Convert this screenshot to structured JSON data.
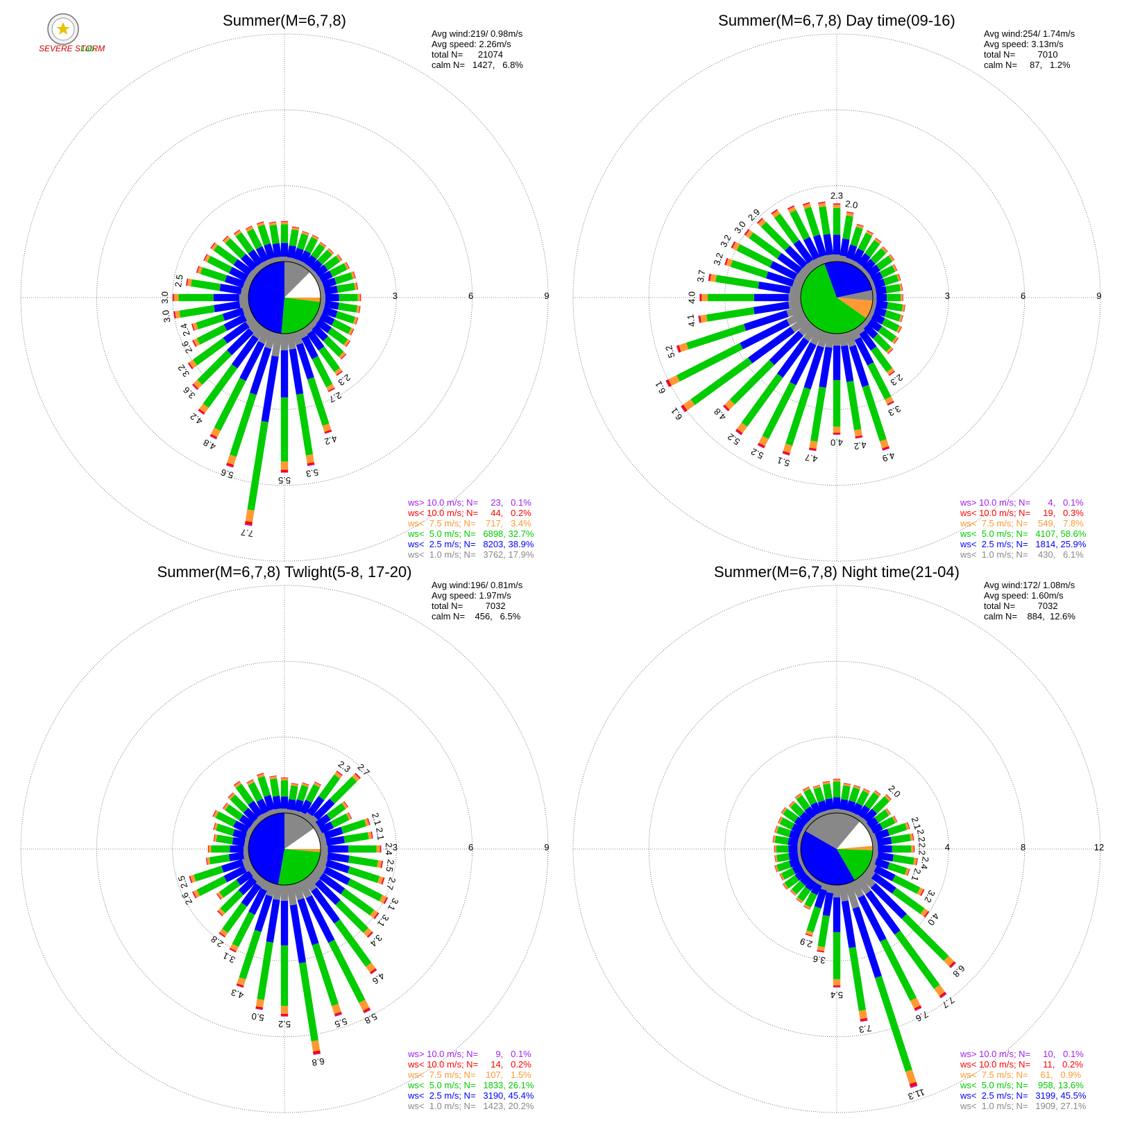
{
  "logo": {
    "text_main": "SEVERE STORM",
    "text_lab": "Lab."
  },
  "legend_colors": [
    "#a020f0",
    "#ff0000",
    "#ff9933",
    "#00cc00",
    "#0000ff",
    "#888888"
  ],
  "chart_data": [
    {
      "type": "windrose",
      "title": "Summer(M=6,7,8)",
      "avg_wind": "Avg wind:219/ 0.98m/s",
      "avg_speed": "Avg speed: 2.26m/s",
      "total": "total N=      21074",
      "calm": "calm N=   1427,   6.8%",
      "rings": [
        3,
        6,
        9
      ],
      "ring_labels": [
        "3",
        "6",
        "9"
      ],
      "legend": [
        "ws> 10.0 m/s; N=     23,   0.1%",
        "ws< 10.0 m/s; N=     44,   0.2%",
        "ws<  7.5 m/s; N=    717,   3.4%",
        "ws<  5.0 m/s; N=   6898, 32.7%",
        "ws<  2.5 m/s; N=   8203, 38.9%",
        "ws<  1.0 m/s; N=   3762, 17.9%"
      ],
      "pie": [
        {
          "start": 0,
          "end": 45,
          "color": "#888888"
        },
        {
          "start": 45,
          "end": 90,
          "color": "#ffffff"
        },
        {
          "start": 90,
          "end": 97,
          "color": "#ff9933"
        },
        {
          "start": 97,
          "end": 185,
          "color": "#00cc00"
        },
        {
          "start": 185,
          "end": 360,
          "color": "#0000ff"
        }
      ],
      "values": [
        1.6,
        1.4,
        1.3,
        1.3,
        1.2,
        1.2,
        1.3,
        1.4,
        1.5,
        1.5,
        1.6,
        1.6,
        1.6,
        1.6,
        1.7,
        1.9,
        2.3,
        2.7,
        4.2,
        5.3,
        5.5,
        7.7,
        5.6,
        4.8,
        4.2,
        3.6,
        3.2,
        2.6,
        2.4,
        3.0,
        3.0,
        2.5,
        2.2,
        2.1,
        2.1,
        1.9,
        1.8,
        1.7,
        1.7,
        1.6
      ],
      "labels": {
        "16": "2.3",
        "17": "2.7",
        "18": "4.2",
        "19": "5.3",
        "20": "5.5",
        "21": "7.7",
        "22": "5.6",
        "23": "4.8",
        "24": "4.2",
        "25": "3.6",
        "26": "3.2",
        "27": "2.6",
        "28": "2.4",
        "29": "3.0",
        "30": "3.0",
        "31": "2.5"
      }
    },
    {
      "type": "windrose",
      "title": "Summer(M=6,7,8) Day time(09-16)",
      "avg_wind": "Avg wind:254/ 1.74m/s",
      "avg_speed": "Avg speed: 3.13m/s",
      "total": "total N=         7010",
      "calm": "calm N=     87,   1.2%",
      "rings": [
        3,
        6,
        9
      ],
      "ring_labels": [
        "3",
        "6",
        "9"
      ],
      "legend": [
        "ws> 10.0 m/s; N=       4,   0.1%",
        "ws< 10.0 m/s; N=     19,   0.3%",
        "ws<  7.5 m/s; N=    549,   7.8%",
        "ws<  5.0 m/s; N=   4107, 58.6%",
        "ws<  2.5 m/s; N=   1814, 25.9%",
        "ws<  1.0 m/s; N=    430,   6.1%"
      ],
      "pie": [
        {
          "start": 0,
          "end": 78,
          "color": "#0000ff"
        },
        {
          "start": 78,
          "end": 95,
          "color": "#888888"
        },
        {
          "start": 95,
          "end": 125,
          "color": "#ff9933"
        },
        {
          "start": 125,
          "end": 340,
          "color": "#00cc00"
        },
        {
          "start": 340,
          "end": 360,
          "color": "#0000ff"
        }
      ],
      "values": [
        2.3,
        2.0,
        1.6,
        1.5,
        1.4,
        1.3,
        1.3,
        1.2,
        1.2,
        1.2,
        1.2,
        1.3,
        1.3,
        1.4,
        1.5,
        1.6,
        2.3,
        3.3,
        4.9,
        4.2,
        4.0,
        4.7,
        5.1,
        5.2,
        5.2,
        4.8,
        6.1,
        6.1,
        5.2,
        4.1,
        4.0,
        3.7,
        3.2,
        3.2,
        3.0,
        2.9,
        2.8,
        2.6,
        2.5,
        2.4
      ],
      "labels": {
        "0": "2.3",
        "1": "2.0",
        "16": "2.3",
        "17": "3.3",
        "18": "4.9",
        "19": "4.2",
        "20": "4.0",
        "21": "4.7",
        "22": "5.1",
        "23": "5.2",
        "24": "5.2",
        "25": "4.8",
        "26": "6.1",
        "27": "6.1",
        "28": "5.2",
        "29": "4.1",
        "30": "4.0",
        "31": "3.7",
        "32": "3.2",
        "33": "3.2",
        "34": "3.0",
        "35": "2.9"
      }
    },
    {
      "type": "windrose",
      "title": "Summer(M=6,7,8) Twlight(5-8, 17-20)",
      "avg_wind": "Avg wind:196/ 0.81m/s",
      "avg_speed": "Avg speed: 1.97m/s",
      "total": "total N=         7032",
      "calm": "calm N=    456,   6.5%",
      "rings": [
        3,
        6,
        9
      ],
      "ring_labels": [
        "3",
        "6",
        "9"
      ],
      "legend": [
        "ws> 10.0 m/s; N=       9,   0.1%",
        "ws< 10.0 m/s; N=     14,   0.2%",
        "ws<  7.5 m/s; N=    107,   1.5%",
        "ws<  5.0 m/s; N=   1833, 26.1%",
        "ws<  2.5 m/s; N=   3190, 45.4%",
        "ws<  1.0 m/s; N=   1423, 20.2%"
      ],
      "pie": [
        {
          "start": 0,
          "end": 55,
          "color": "#888888"
        },
        {
          "start": 55,
          "end": 90,
          "color": "#ffffff"
        },
        {
          "start": 90,
          "end": 95,
          "color": "#ff9933"
        },
        {
          "start": 95,
          "end": 190,
          "color": "#00cc00"
        },
        {
          "start": 190,
          "end": 360,
          "color": "#0000ff"
        }
      ],
      "values": [
        1.4,
        1.2,
        1.3,
        1.5,
        2.3,
        2.7,
        1.6,
        1.5,
        2.1,
        2.1,
        2.4,
        2.5,
        2.7,
        3.1,
        3.1,
        3.4,
        4.6,
        5.8,
        5.5,
        6.8,
        5.2,
        5.0,
        4.3,
        3.1,
        2.8,
        2.2,
        1.8,
        2.6,
        2.5,
        1.7,
        1.6,
        1.4,
        1.5,
        1.7,
        1.5,
        1.6,
        1.8,
        1.6,
        1.7,
        1.5
      ],
      "labels": {
        "4": "2.3",
        "5": "2.7",
        "8": "2.1",
        "9": "2.1",
        "10": "2.4",
        "11": "2.5",
        "12": "2.7",
        "13": "3.1",
        "14": "3.1",
        "15": "3.4",
        "16": "4.6",
        "17": "5.8",
        "18": "5.5",
        "19": "6.8",
        "20": "5.2",
        "21": "5.0",
        "22": "4.3",
        "23": "3.1",
        "24": "2.8",
        "27": "2.6",
        "28": "2.5"
      }
    },
    {
      "type": "windrose",
      "title": "Summer(M=6,7,8) Night time(21-04)",
      "avg_wind": "Avg wind:172/ 1.08m/s",
      "avg_speed": "Avg speed: 1.60m/s",
      "total": "total N=         7032",
      "calm": "calm N=    884,  12.6%",
      "rings": [
        4,
        8,
        12
      ],
      "ring_labels": [
        "4",
        "8",
        "12"
      ],
      "legend": [
        "ws> 10.0 m/s; N=     10,   0.1%",
        "ws< 10.0 m/s; N=     11,   0.2%",
        "ws<  7.5 m/s; N=     61,   0.9%",
        "ws<  5.0 m/s; N=    958, 13.6%",
        "ws<  2.5 m/s; N=   3199, 45.5%",
        "ws<  1.0 m/s; N=   1909, 27.1%"
      ],
      "pie": [
        {
          "start": 0,
          "end": 40,
          "color": "#888888"
        },
        {
          "start": 40,
          "end": 85,
          "color": "#ffffff"
        },
        {
          "start": 85,
          "end": 92,
          "color": "#ff9933"
        },
        {
          "start": 92,
          "end": 150,
          "color": "#00cc00"
        },
        {
          "start": 150,
          "end": 300,
          "color": "#0000ff"
        },
        {
          "start": 300,
          "end": 360,
          "color": "#888888"
        }
      ],
      "values": [
        1.8,
        1.6,
        1.6,
        1.6,
        1.8,
        2.0,
        1.5,
        1.6,
        2.1,
        2.2,
        2.2,
        2.4,
        2.1,
        3.2,
        4.0,
        6.8,
        7.7,
        7.6,
        11.3,
        7.3,
        5.4,
        3.6,
        2.9,
        1.6,
        1.5,
        1.4,
        1.5,
        1.4,
        1.5,
        1.4,
        1.4,
        1.5,
        1.5,
        1.5,
        1.6,
        1.5,
        1.6,
        1.7,
        1.6,
        1.7
      ],
      "labels": {
        "5": "2.0",
        "8": "2.1",
        "9": "2.2",
        "10": "2.2",
        "11": "2.4",
        "12": "2.1",
        "13": "3.2",
        "14": "4.0",
        "15": "6.8",
        "16": "7.7",
        "17": "7.6",
        "18": "11.3",
        "19": "7.3",
        "20": "5.4",
        "21": "3.6",
        "22": "2.9"
      }
    }
  ]
}
